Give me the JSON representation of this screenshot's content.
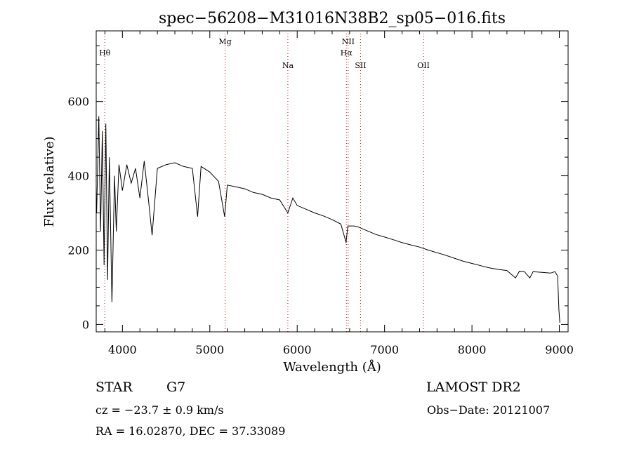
{
  "chart_data": {
    "type": "line",
    "title": "spec−56208−M31016N38B2_sp05−016.fits",
    "xlabel": "Wavelength (Å)",
    "ylabel": "Flux (relative)",
    "xlim": [
      3700,
      9100
    ],
    "ylim": [
      -20,
      790
    ],
    "x_ticks": [
      4000,
      5000,
      6000,
      7000,
      8000,
      9000
    ],
    "y_ticks": [
      0,
      200,
      400,
      600
    ],
    "line_color": "#000000",
    "marker_color": "#cc0000",
    "spectral_lines": [
      {
        "name": "Hθ",
        "x": 3798,
        "row": 1
      },
      {
        "name": "Mg",
        "x": 5175,
        "row": 0
      },
      {
        "name": "Na",
        "x": 5893,
        "row": 2
      },
      {
        "name": "NII",
        "x": 6583,
        "row": 0
      },
      {
        "name": "Hα",
        "x": 6563,
        "row": 1
      },
      {
        "name": "SII",
        "x": 6725,
        "row": 2
      },
      {
        "name": "OII",
        "x": 7445,
        "row": 2
      }
    ],
    "series": [
      {
        "x": [
          3705,
          3730,
          3750,
          3770,
          3790,
          3810,
          3830,
          3850,
          3880,
          3910,
          3930,
          3960,
          4000,
          4050,
          4100,
          4150,
          4200,
          4250,
          4300,
          4340,
          4400,
          4500,
          4600,
          4700,
          4800,
          4860,
          4900,
          5000,
          5100,
          5170,
          5200,
          5300,
          5400,
          5500,
          5600,
          5700,
          5800,
          5893,
          5950,
          6000,
          6100,
          6200,
          6300,
          6400,
          6500,
          6560,
          6563,
          6580,
          6650,
          6700,
          6800,
          6900,
          7000,
          7100,
          7200,
          7300,
          7400,
          7500,
          7600,
          7700,
          7800,
          7900,
          8000,
          8100,
          8200,
          8300,
          8400,
          8498,
          8542,
          8600,
          8662,
          8700,
          8800,
          8900,
          8950,
          8980,
          8995,
          9005
        ],
        "y": [
          300,
          560,
          250,
          520,
          160,
          540,
          120,
          450,
          60,
          400,
          250,
          430,
          360,
          430,
          380,
          420,
          340,
          440,
          330,
          240,
          420,
          430,
          435,
          425,
          420,
          290,
          425,
          410,
          385,
          290,
          375,
          370,
          365,
          355,
          350,
          340,
          335,
          300,
          340,
          320,
          310,
          300,
          292,
          282,
          270,
          220,
          230,
          265,
          265,
          262,
          252,
          242,
          235,
          228,
          220,
          214,
          208,
          200,
          193,
          186,
          178,
          170,
          164,
          158,
          152,
          148,
          145,
          125,
          143,
          142,
          125,
          142,
          140,
          138,
          142,
          130,
          40,
          5
        ]
      }
    ],
    "annotations": [
      "STAR",
      "G7",
      "LAMOST DR2",
      "cz = −23.7 ± 0.9 km/s",
      "Obs−Date: 20121007",
      "RA =  16.02870, DEC =  37.33089"
    ]
  }
}
